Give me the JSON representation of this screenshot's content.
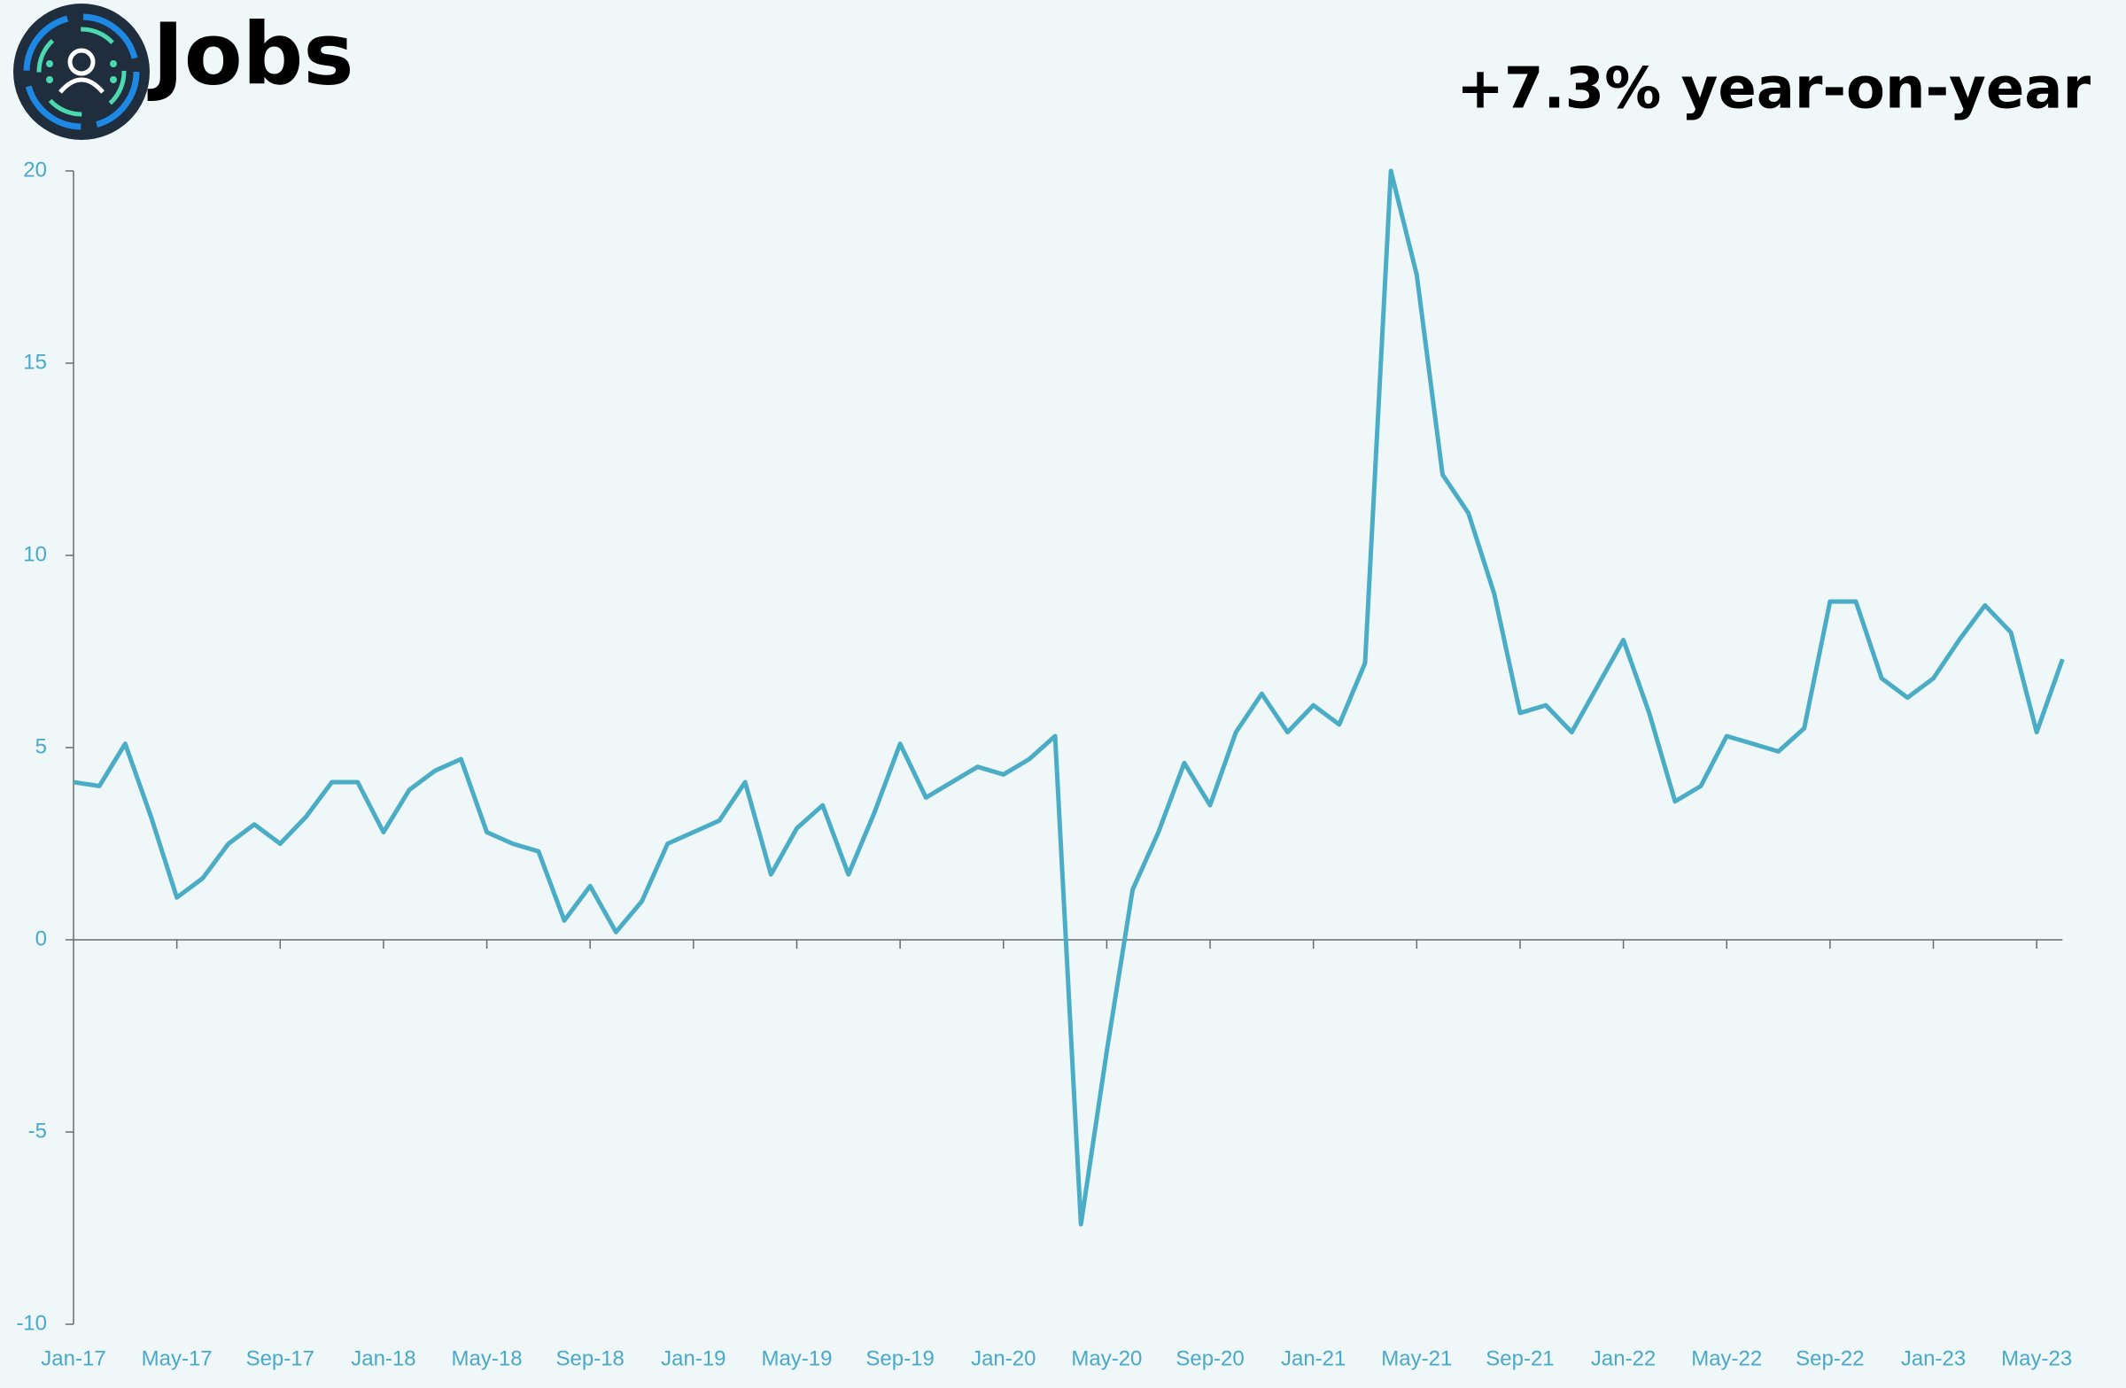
{
  "chart_data": {
    "type": "line",
    "title": "Jobs",
    "subtitle": "+7.3% year-on-year",
    "categories": [
      "Jan-17",
      null,
      null,
      null,
      "May-17",
      null,
      null,
      null,
      "Sep-17",
      null,
      null,
      null,
      "Jan-18",
      null,
      null,
      null,
      "May-18",
      null,
      null,
      null,
      "Sep-18",
      null,
      null,
      null,
      "Jan-19",
      null,
      null,
      null,
      "May-19",
      null,
      null,
      null,
      "Sep-19",
      null,
      null,
      null,
      "Jan-20",
      null,
      null,
      null,
      "May-20",
      null,
      null,
      null,
      "Sep-20",
      null,
      null,
      null,
      "Jan-21",
      null,
      null,
      null,
      "May-21",
      null,
      null,
      null,
      "Sep-21",
      null,
      null,
      null,
      "Jan-22",
      null,
      null,
      null,
      "May-22",
      null,
      null,
      null,
      "Sep-22",
      null,
      null,
      null,
      "Jan-23",
      null,
      null,
      null,
      "May-23",
      null
    ],
    "series": [
      {
        "name": "Jobs",
        "color": "#4bacc6",
        "values": [
          4.1,
          4.0,
          5.1,
          3.2,
          1.1,
          1.6,
          2.5,
          3.0,
          2.5,
          3.2,
          4.1,
          4.1,
          2.8,
          3.9,
          4.4,
          4.7,
          2.8,
          2.5,
          2.3,
          0.5,
          1.4,
          0.2,
          1.0,
          2.5,
          2.8,
          3.1,
          4.1,
          1.7,
          2.9,
          3.5,
          1.7,
          3.3,
          5.1,
          3.7,
          4.1,
          4.5,
          4.3,
          4.7,
          5.3,
          -7.4,
          -2.9,
          1.3,
          2.8,
          4.6,
          3.5,
          5.4,
          6.4,
          5.4,
          6.1,
          5.6,
          7.2,
          20,
          17.3,
          12.1,
          11.1,
          9.0,
          5.9,
          6.1,
          5.4,
          6.6,
          7.8,
          5.9,
          3.6,
          4.0,
          5.3,
          5.1,
          4.9,
          5.5,
          8.8,
          8.8,
          6.8,
          6.3,
          6.8,
          7.8,
          8.7,
          8.0,
          5.4,
          7.3
        ]
      }
    ],
    "ylim": [
      -10,
      20
    ],
    "yticks": [
      -10,
      -5,
      0,
      5,
      10,
      15,
      20
    ]
  }
}
